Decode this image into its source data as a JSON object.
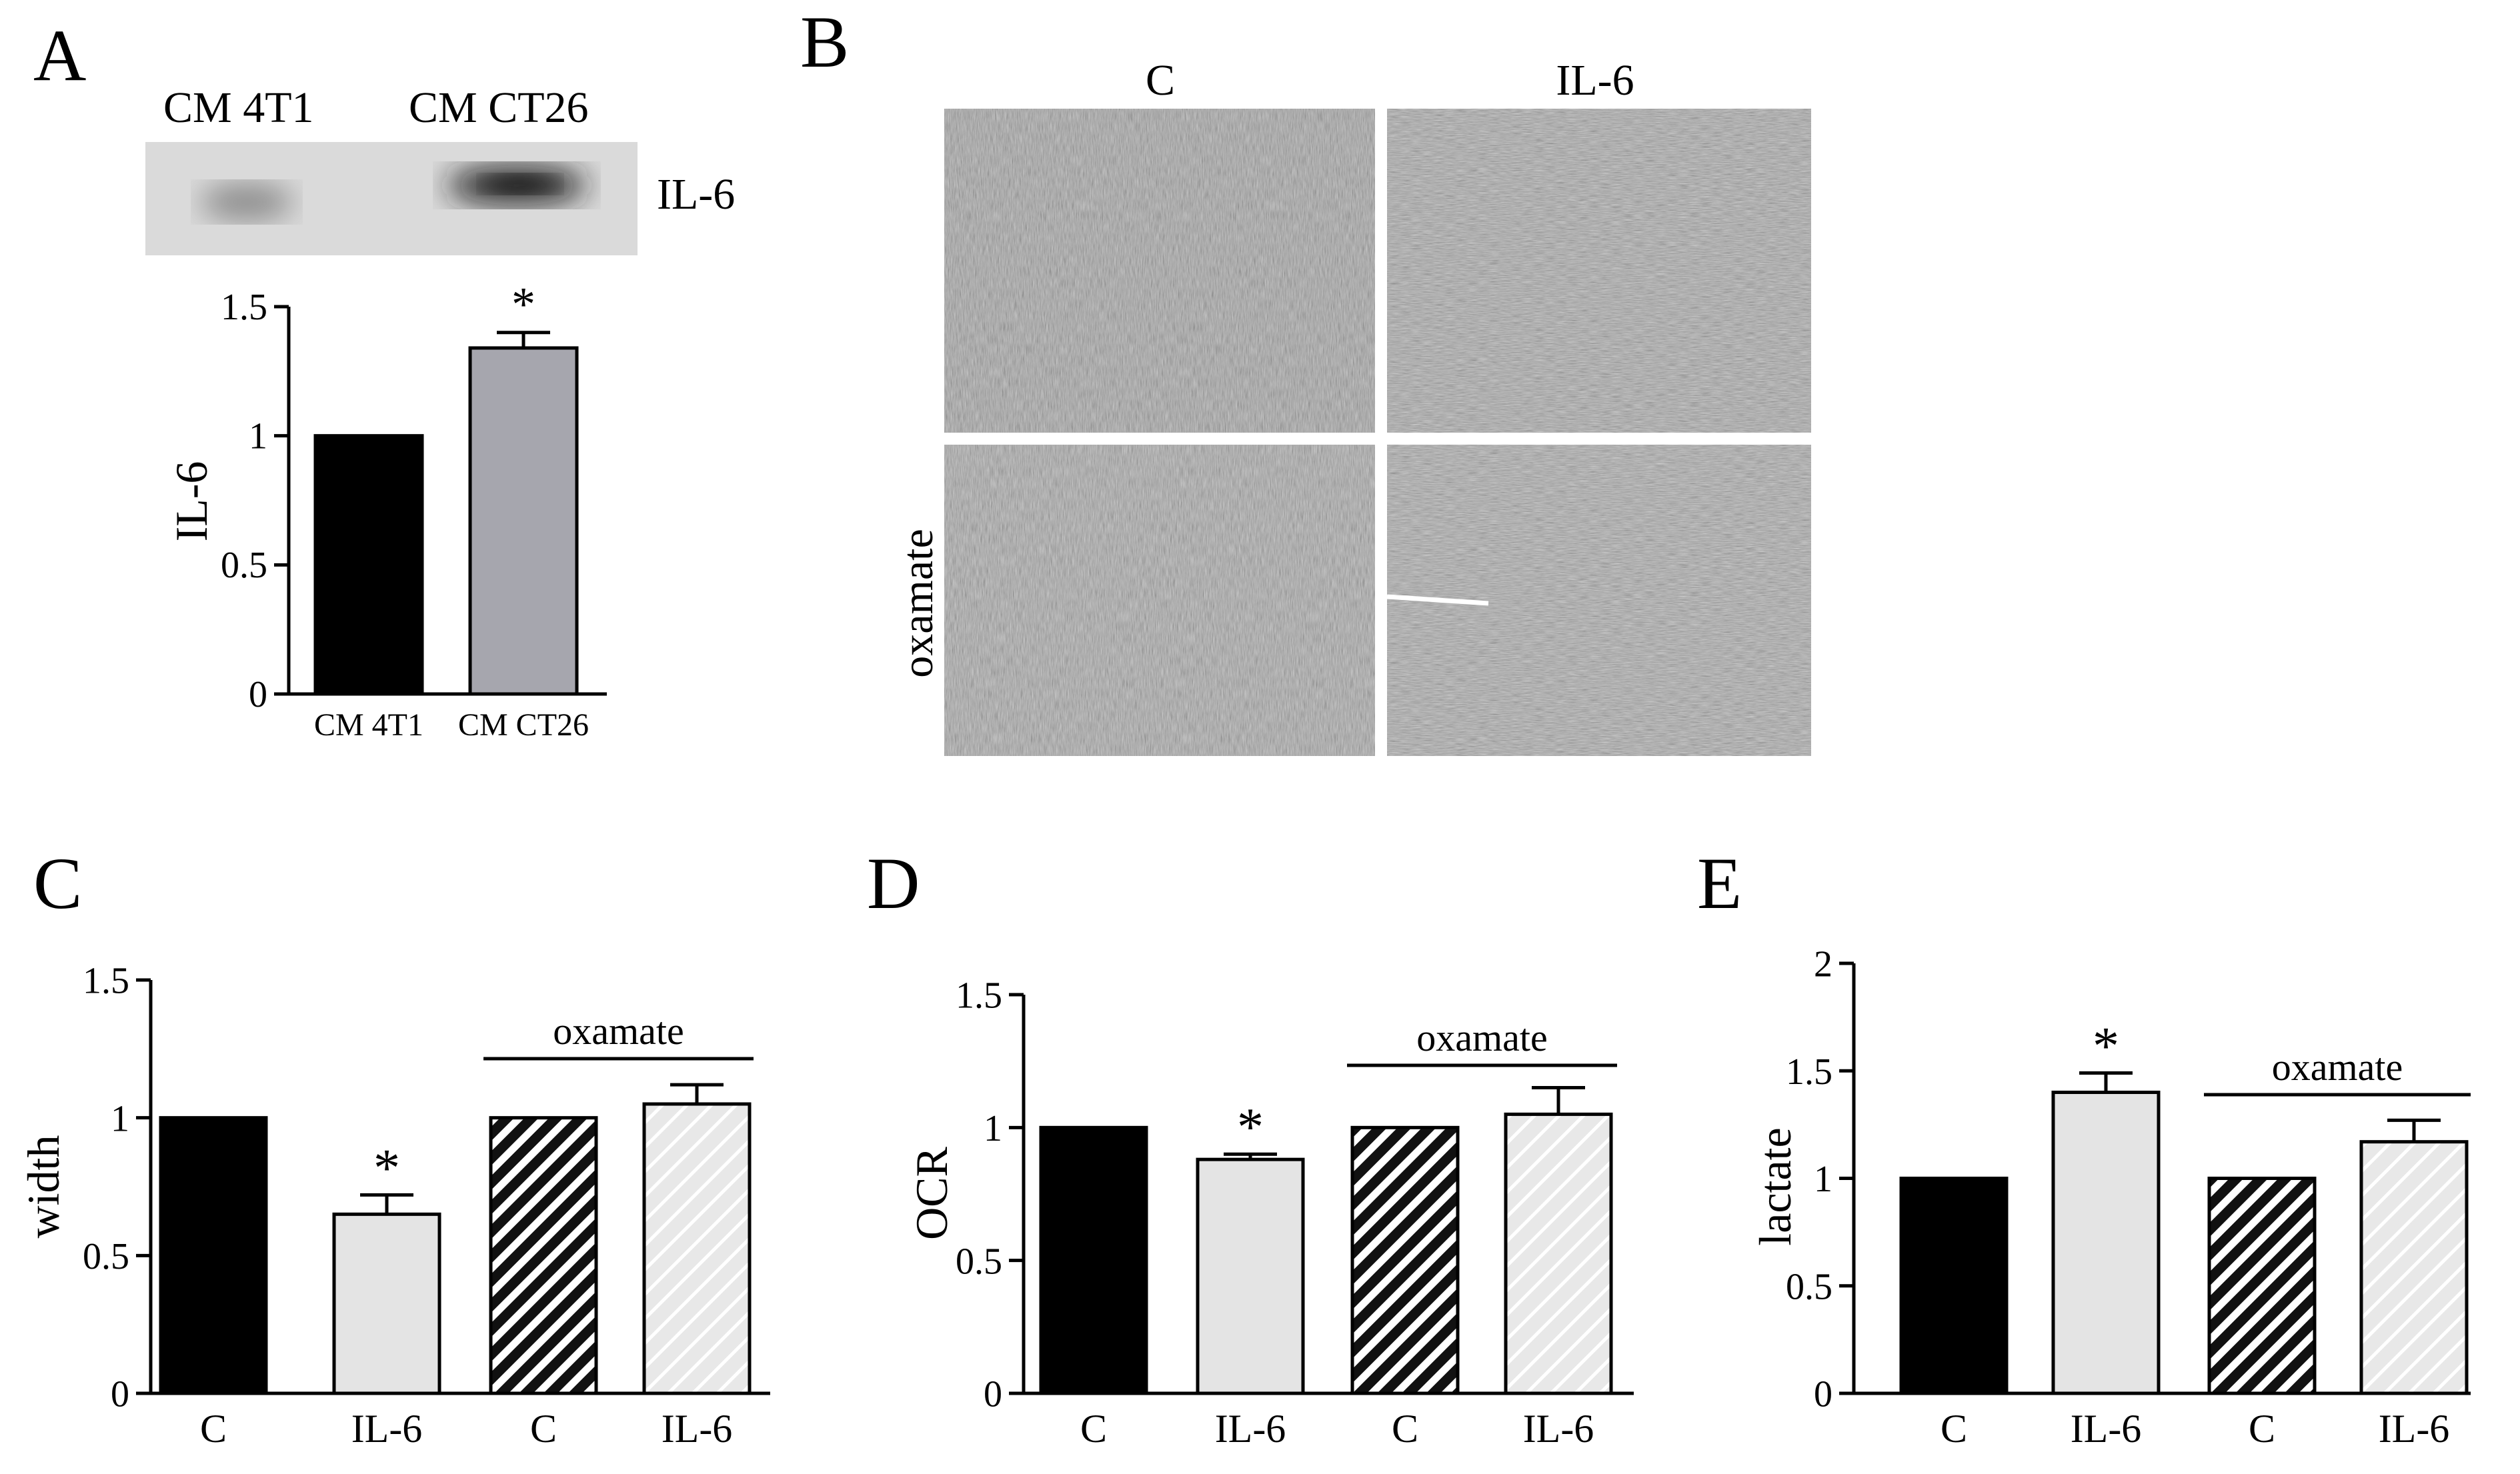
{
  "panels": {
    "A": {
      "letter": "A",
      "blot": {
        "lane_labels": [
          "CM 4T1",
          "CM CT26"
        ],
        "band_label": "IL-6"
      },
      "chart": {
        "type": "bar",
        "categories": [
          "CM 4T1",
          "CM CT26"
        ],
        "values": [
          1.0,
          1.34
        ],
        "errors": [
          0,
          0.06
        ],
        "ylabel": "IL-6",
        "ylim": [
          0,
          1.5
        ],
        "yticks": [
          "0",
          "0.5",
          "1",
          "1.5"
        ],
        "bar_colors": [
          "#000000",
          "#a6a6ae"
        ],
        "significance": [
          "",
          "*"
        ]
      }
    },
    "B": {
      "letter": "B",
      "column_labels": [
        "C",
        "IL-6"
      ],
      "row_label": "oxamate"
    },
    "C": {
      "letter": "C",
      "chart": {
        "type": "bar",
        "categories": [
          "C",
          "IL-6",
          "C",
          "IL-6"
        ],
        "values": [
          1.0,
          0.65,
          1.0,
          1.05
        ],
        "errors": [
          0,
          0.07,
          0,
          0.07
        ],
        "ylabel": "width",
        "ylim": [
          0,
          1.5
        ],
        "yticks": [
          "0",
          "0.5",
          "1",
          "1.5"
        ],
        "significance": [
          "",
          "*",
          "",
          ""
        ],
        "group_label": "oxamate"
      }
    },
    "D": {
      "letter": "D",
      "chart": {
        "type": "bar",
        "categories": [
          "C",
          "IL-6",
          "C",
          "IL-6"
        ],
        "values": [
          1.0,
          0.88,
          1.0,
          1.05
        ],
        "errors": [
          0,
          0.02,
          0,
          0.1
        ],
        "ylabel": "OCR",
        "ylim": [
          0,
          1.5
        ],
        "yticks": [
          "0",
          "0.5",
          "1",
          "1.5"
        ],
        "significance": [
          "",
          "*",
          "",
          ""
        ],
        "group_label": "oxamate"
      }
    },
    "E": {
      "letter": "E",
      "chart": {
        "type": "bar",
        "categories": [
          "C",
          "IL-6",
          "C",
          "IL-6"
        ],
        "values": [
          1.0,
          1.4,
          1.0,
          1.17
        ],
        "errors": [
          0,
          0.09,
          0,
          0.1
        ],
        "ylabel": "lactate",
        "ylim": [
          0,
          2
        ],
        "yticks": [
          "0",
          "0.5",
          "1",
          "1.5",
          "2"
        ],
        "significance": [
          "",
          "*",
          "",
          ""
        ],
        "group_label": "oxamate"
      }
    }
  }
}
